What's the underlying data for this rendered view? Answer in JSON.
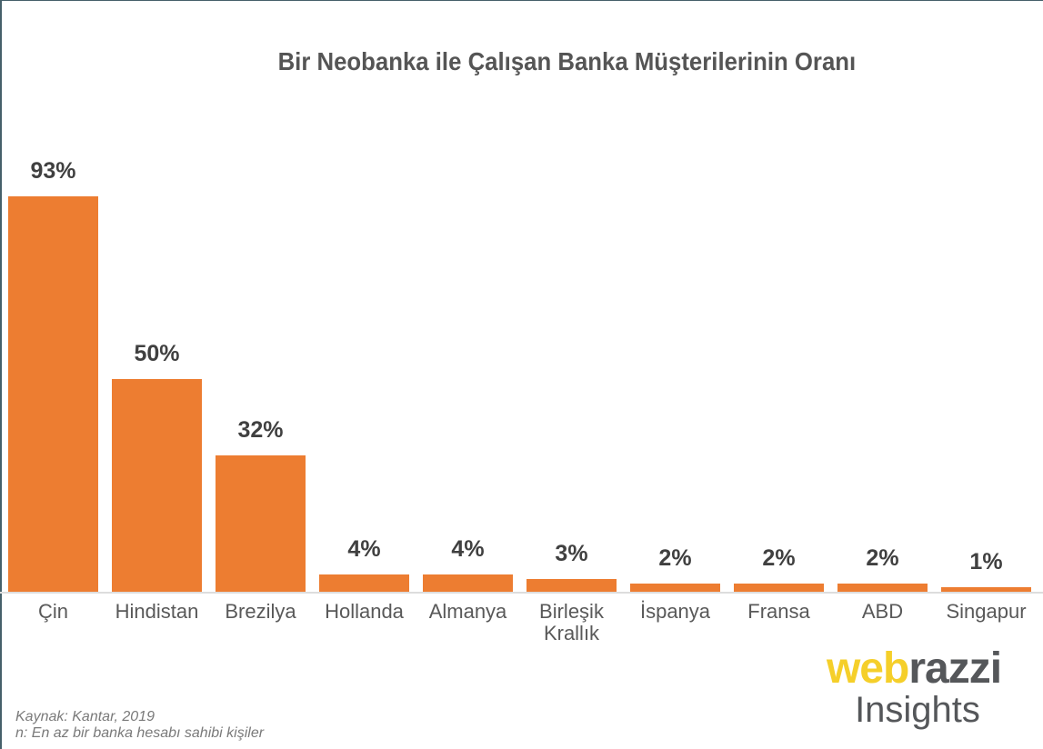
{
  "chart_data": {
    "type": "bar",
    "title": "Bir Neobanka ile Çalışan Banka Müşterilerinin Oranı",
    "categories": [
      "Çin",
      "Hindistan",
      "Brezilya",
      "Hollanda",
      "Almanya",
      "Birleşik Krallık",
      "İspanya",
      "Fransa",
      "ABD",
      "Singapur"
    ],
    "values": [
      93,
      50,
      32,
      4,
      4,
      3,
      2,
      2,
      2,
      1
    ],
    "value_labels": [
      "93%",
      "50%",
      "32%",
      "4%",
      "4%",
      "3%",
      "2%",
      "2%",
      "2%",
      "1%"
    ],
    "xlabel": "",
    "ylabel": "",
    "ylim": [
      0,
      93
    ],
    "grid": false,
    "legend": "none",
    "bar_color": "#ed7d31",
    "unit": "%"
  },
  "title": "Bir Neobanka ile Çalışan Banka Müşterilerinin Oranı",
  "category_lines": [
    [
      "Çin"
    ],
    [
      "Hindistan"
    ],
    [
      "Brezilya"
    ],
    [
      "Hollanda"
    ],
    [
      "Almanya"
    ],
    [
      "Birleşik",
      "Krallık"
    ],
    [
      "İspanya"
    ],
    [
      "Fransa"
    ],
    [
      "ABD"
    ],
    [
      "Singapur"
    ]
  ],
  "footer": {
    "source": "Kaynak: Kantar, 2019",
    "sample": "n: En az bir banka hesabı sahibi kişiler"
  },
  "logo": {
    "part1": "web",
    "part2": "razzi",
    "subtitle": "Insights",
    "color_primary": "#f5cf2a",
    "color_secondary": "#55575a"
  }
}
